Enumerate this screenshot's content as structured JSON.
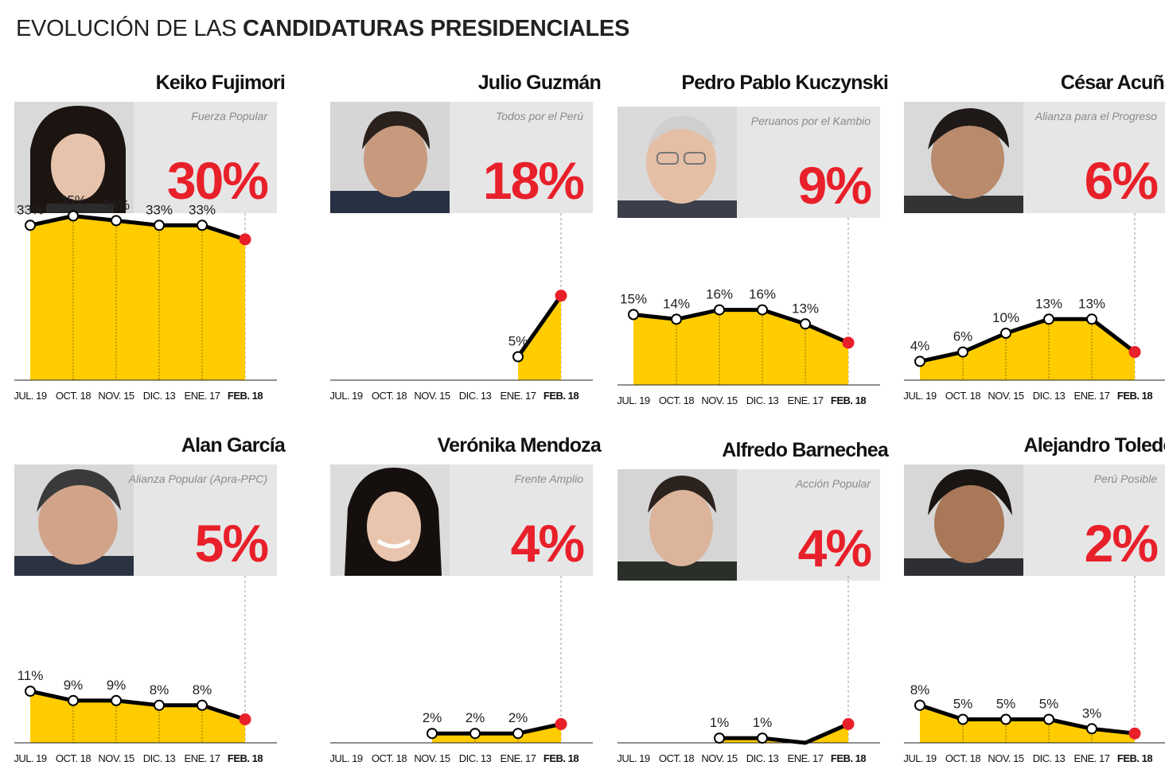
{
  "title": {
    "light": "EVOLUCIÓN DE LAS",
    "bold": "CANDIDATURAS PRESIDENCIALES"
  },
  "colors": {
    "accent": "#e8202a",
    "fill": "#ffcc00",
    "card": "#e6e6e6",
    "line": "#000000"
  },
  "chart_data": [
    {
      "type": "area",
      "title": "Keiko Fujimori",
      "subtitle": "Fuerza Popular",
      "current": "30%",
      "categories": [
        "JUL. 19",
        "OCT. 18",
        "NOV. 15",
        "DIC. 13",
        "ENE. 17",
        "FEB. 18"
      ],
      "values": [
        33,
        35,
        34,
        33,
        33,
        30
      ],
      "labels": [
        "33%",
        "35%",
        "34%",
        "33%",
        "33%",
        ""
      ]
    },
    {
      "type": "area",
      "title": "Julio Guzmán",
      "subtitle": "Todos por el Perú",
      "current": "18%",
      "categories": [
        "JUL. 19",
        "OCT. 18",
        "NOV. 15",
        "DIC. 13",
        "ENE. 17",
        "FEB. 18"
      ],
      "values": [
        null,
        null,
        null,
        null,
        5,
        18
      ],
      "labels": [
        "",
        "",
        "",
        "",
        "5%",
        ""
      ]
    },
    {
      "type": "area",
      "title": "Pedro Pablo Kuczynski",
      "subtitle": "Peruanos por el Kambio",
      "current": "9%",
      "categories": [
        "JUL. 19",
        "OCT. 18",
        "NOV. 15",
        "DIC. 13",
        "ENE. 17",
        "FEB. 18"
      ],
      "values": [
        15,
        14,
        16,
        16,
        13,
        9
      ],
      "labels": [
        "15%",
        "14%",
        "16%",
        "16%",
        "13%",
        ""
      ]
    },
    {
      "type": "area",
      "title": "César Acuña",
      "subtitle": "Alianza para el Progreso",
      "current": "6%",
      "categories": [
        "JUL. 19",
        "OCT. 18",
        "NOV. 15",
        "DIC. 13",
        "ENE. 17",
        "FEB. 18"
      ],
      "values": [
        4,
        6,
        10,
        13,
        13,
        6
      ],
      "labels": [
        "4%",
        "6%",
        "10%",
        "13%",
        "13%",
        ""
      ]
    },
    {
      "type": "area",
      "title": "Alan García",
      "subtitle": "Alianza Popular (Apra-PPC)",
      "current": "5%",
      "categories": [
        "JUL. 19",
        "OCT. 18",
        "NOV. 15",
        "DIC. 13",
        "ENE. 17",
        "FEB. 18"
      ],
      "values": [
        11,
        9,
        9,
        8,
        8,
        5
      ],
      "labels": [
        "11%",
        "9%",
        "9%",
        "8%",
        "8%",
        ""
      ]
    },
    {
      "type": "area",
      "title": "Verónika Mendoza",
      "subtitle": "Frente Amplio",
      "current": "4%",
      "categories": [
        "JUL. 19",
        "OCT. 18",
        "NOV. 15",
        "DIC. 13",
        "ENE. 17",
        "FEB. 18"
      ],
      "values": [
        null,
        null,
        2,
        2,
        2,
        4
      ],
      "labels": [
        "",
        "",
        "2%",
        "2%",
        "2%",
        ""
      ]
    },
    {
      "type": "area",
      "title": "Alfredo Barnechea",
      "subtitle": "Acción Popular",
      "current": "4%",
      "categories": [
        "JUL. 19",
        "OCT. 18",
        "NOV. 15",
        "DIC. 13",
        "ENE. 17",
        "FEB. 18"
      ],
      "values": [
        null,
        null,
        1,
        1,
        0,
        4
      ],
      "labels": [
        "",
        "",
        "1%",
        "1%",
        "",
        ""
      ]
    },
    {
      "type": "area",
      "title": "Alejandro Toledo",
      "subtitle": "Perú Posible",
      "current": "2%",
      "categories": [
        "JUL. 19",
        "OCT. 18",
        "NOV. 15",
        "DIC. 13",
        "ENE. 17",
        "FEB. 18"
      ],
      "values": [
        8,
        5,
        5,
        5,
        3,
        2
      ],
      "labels": [
        "8%",
        "5%",
        "5%",
        "5%",
        "3%",
        ""
      ]
    }
  ]
}
